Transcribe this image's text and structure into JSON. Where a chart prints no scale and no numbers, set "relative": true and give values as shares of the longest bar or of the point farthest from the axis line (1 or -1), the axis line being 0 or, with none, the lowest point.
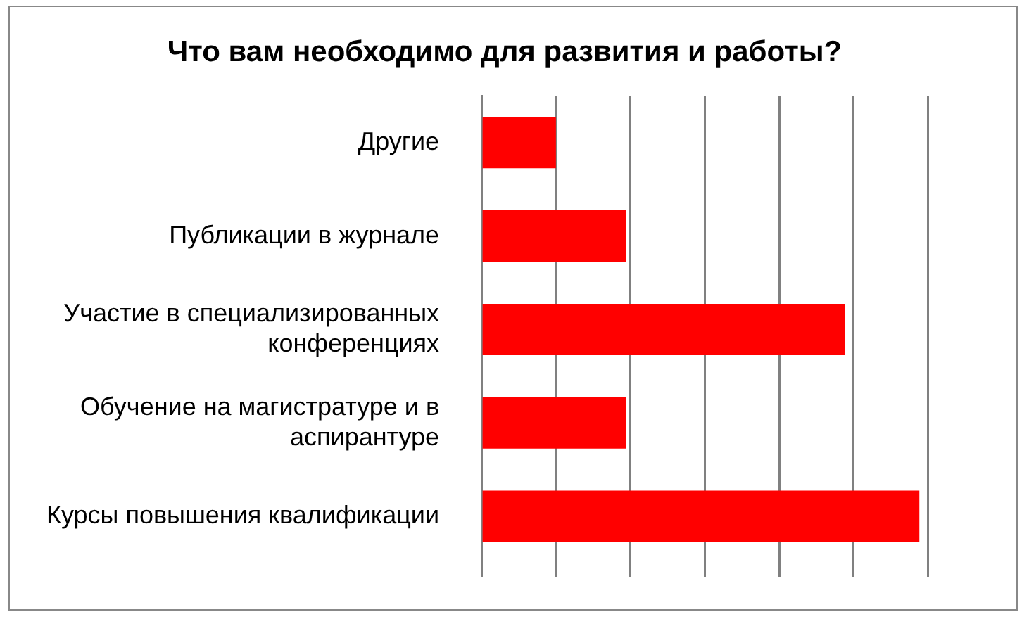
{
  "chart_data": {
    "type": "bar",
    "orientation": "horizontal",
    "relative": true,
    "title": "Что вам необходимо для развития и работы?",
    "categories": [
      "Другие",
      "Публикации в журнале",
      "Участие в специализированных конференциях",
      "Обучение на магистратуре и в аспирантуре",
      "Курсы повышения квалификации"
    ],
    "values": [
      0.17,
      0.33,
      0.83,
      0.33,
      1
    ],
    "color": "#ff0000",
    "grid": "x",
    "legend": false
  }
}
